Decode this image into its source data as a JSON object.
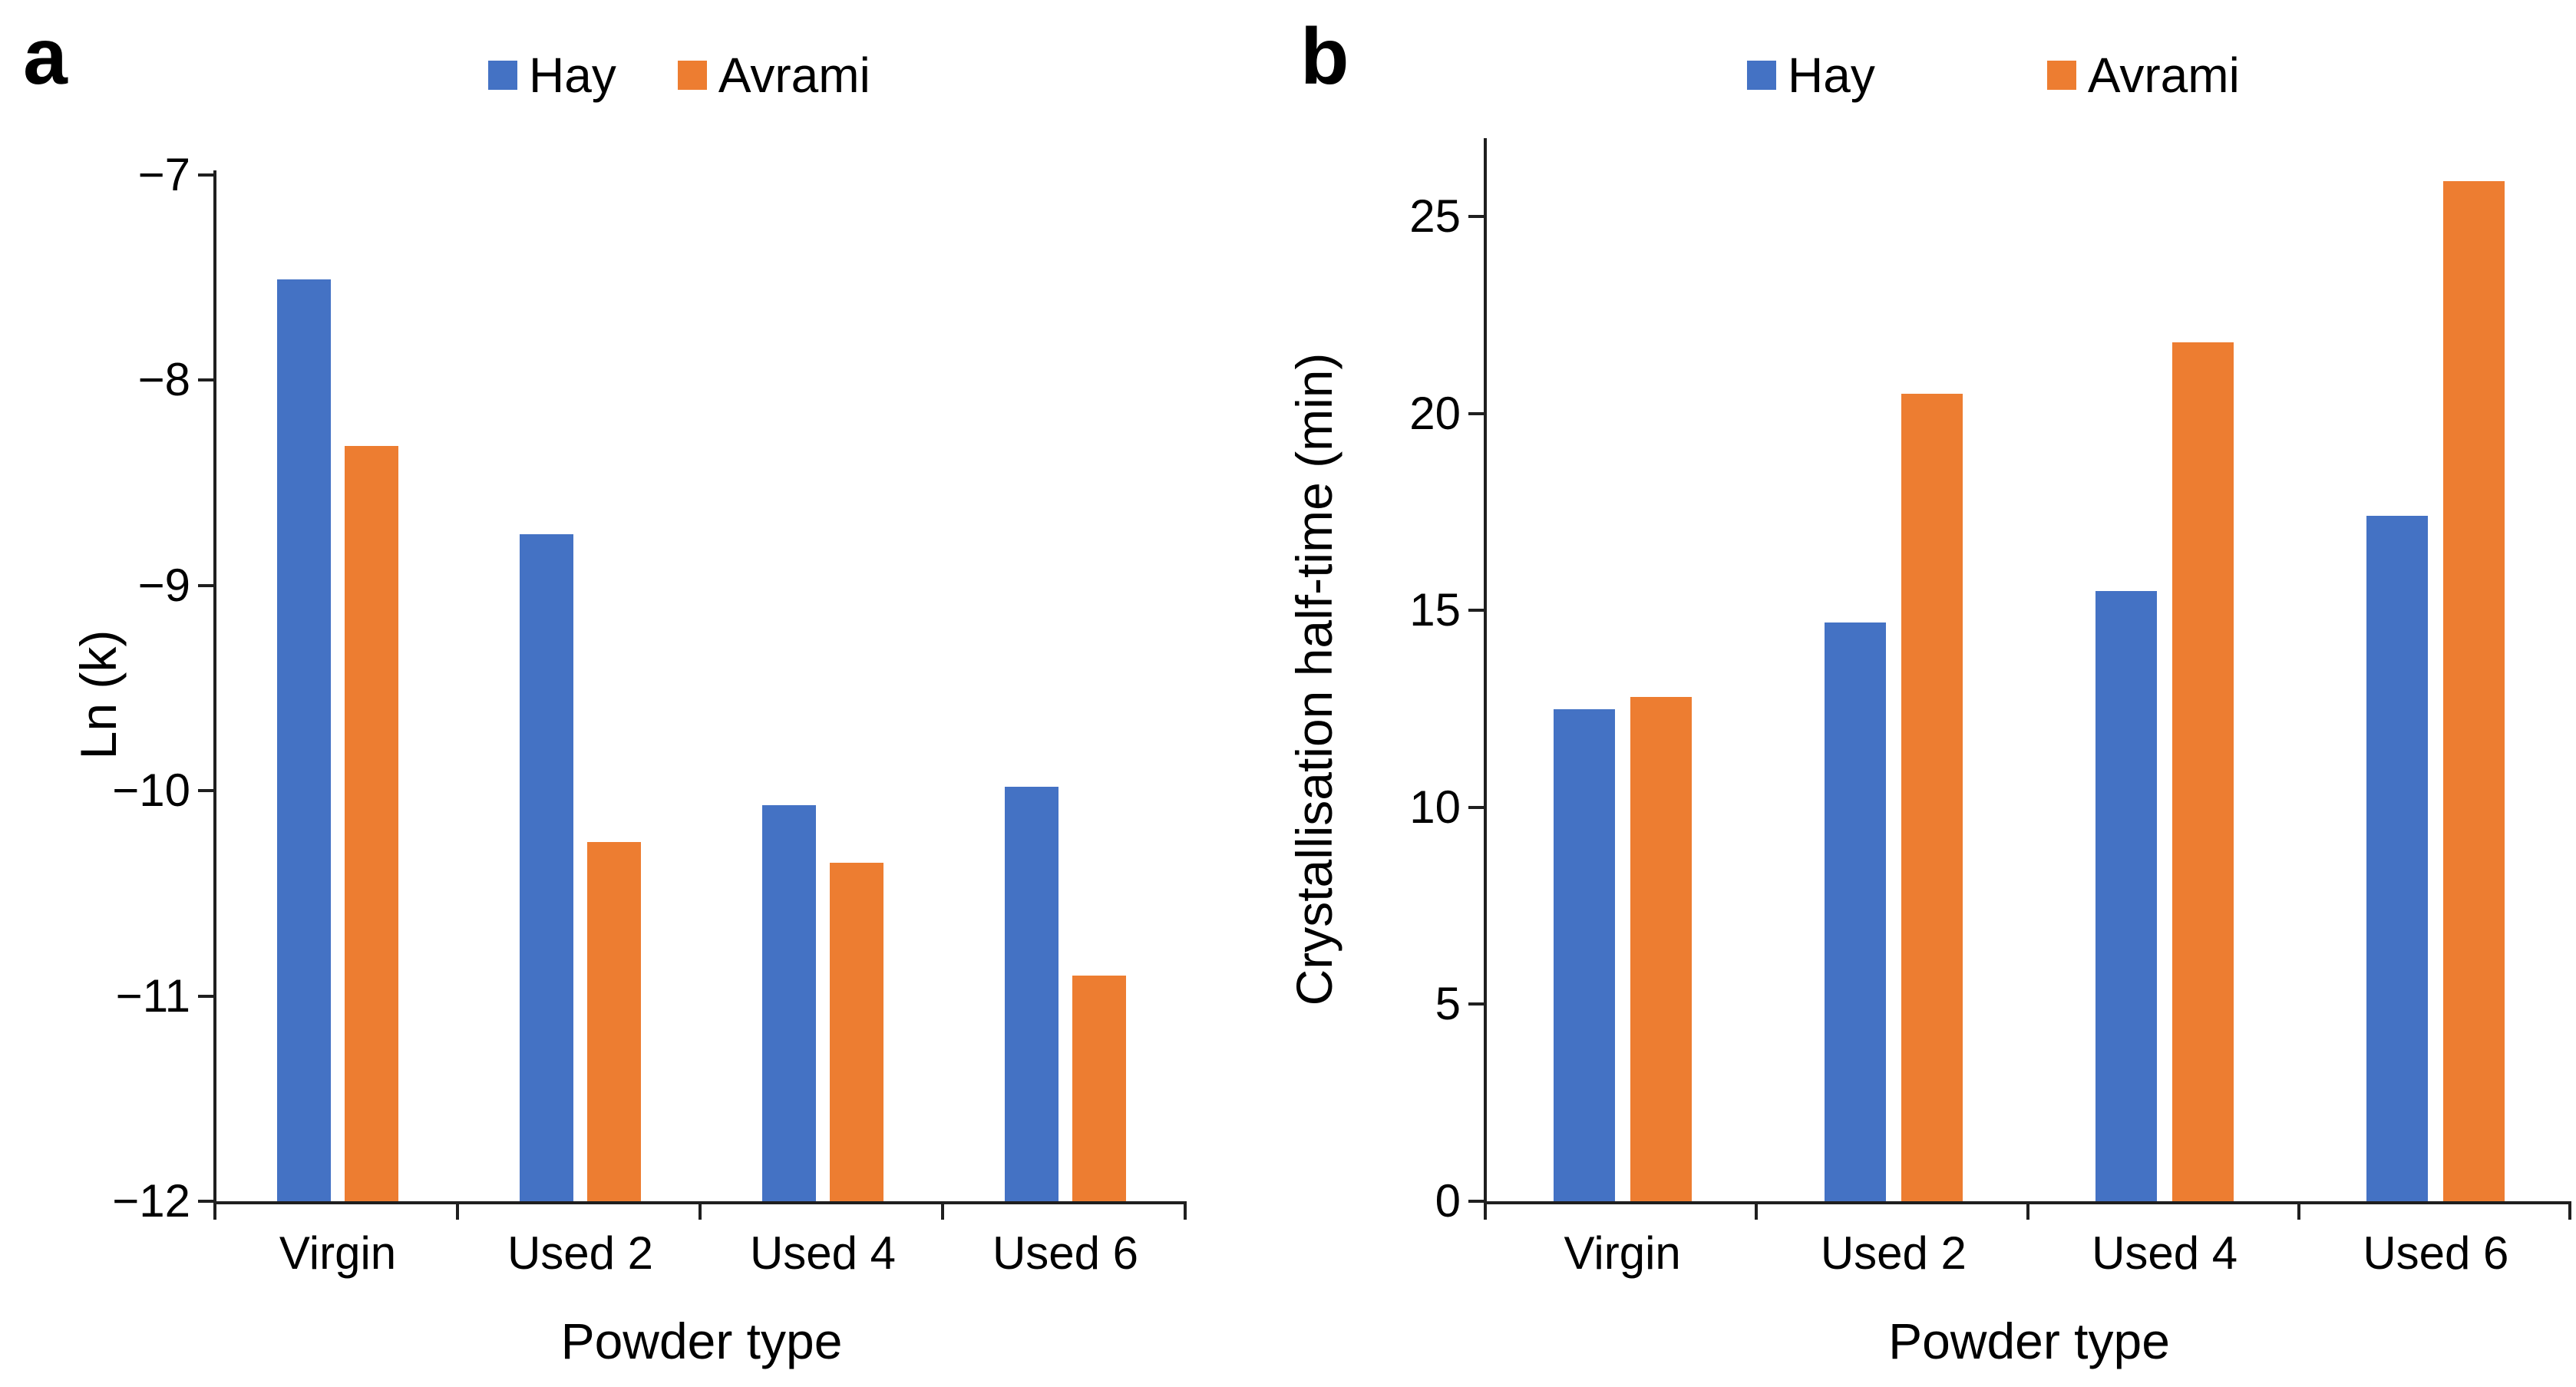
{
  "figure": {
    "background": "#ffffff",
    "panels": [
      {
        "label": "a"
      },
      {
        "label": "b"
      }
    ]
  },
  "legend": {
    "entries": [
      {
        "label": "Hay",
        "color": "#4472C4"
      },
      {
        "label": "Avrami",
        "color": "#ED7D31"
      }
    ]
  },
  "chart_data": [
    {
      "type": "bar",
      "panel": "a",
      "title": "",
      "categories": [
        "Virgin",
        "Used 2",
        "Used 4",
        "Used 6"
      ],
      "series": [
        {
          "name": "Hay",
          "color": "#4472C4",
          "values": [
            -7.51,
            -8.75,
            -10.07,
            -9.98
          ]
        },
        {
          "name": "Avrami",
          "color": "#ED7D31",
          "values": [
            -8.32,
            -10.25,
            -10.35,
            -10.9
          ]
        }
      ],
      "xlabel": "Powder type",
      "ylabel": "Ln (k)",
      "ylim": [
        -12,
        -7
      ],
      "yticks": [
        {
          "label": "−7",
          "value": -7
        },
        {
          "label": "−8",
          "value": -8
        },
        {
          "label": "−9",
          "value": -9
        },
        {
          "label": "−10",
          "value": -10
        },
        {
          "label": "−11",
          "value": -11
        },
        {
          "label": "−12",
          "value": -12
        }
      ],
      "legend_position": "top",
      "grid": false,
      "baseline": -12
    },
    {
      "type": "bar",
      "panel": "b",
      "title": "",
      "categories": [
        "Virgin",
        "Used 2",
        "Used 4",
        "Used 6"
      ],
      "series": [
        {
          "name": "Hay",
          "color": "#4472C4",
          "values": [
            12.5,
            14.7,
            15.5,
            17.4
          ]
        },
        {
          "name": "Avrami",
          "color": "#ED7D31",
          "values": [
            12.8,
            20.5,
            21.8,
            25.9
          ]
        }
      ],
      "xlabel": "Powder type",
      "ylabel": "Crystallisation half-time (min)",
      "ylim": [
        0,
        27
      ],
      "yticks": [
        {
          "label": "25",
          "value": 25
        },
        {
          "label": "20",
          "value": 20
        },
        {
          "label": "15",
          "value": 15
        },
        {
          "label": "10",
          "value": 10
        },
        {
          "label": "5",
          "value": 5
        },
        {
          "label": "0",
          "value": 0
        }
      ],
      "legend_position": "top",
      "grid": false,
      "baseline": 0
    }
  ]
}
